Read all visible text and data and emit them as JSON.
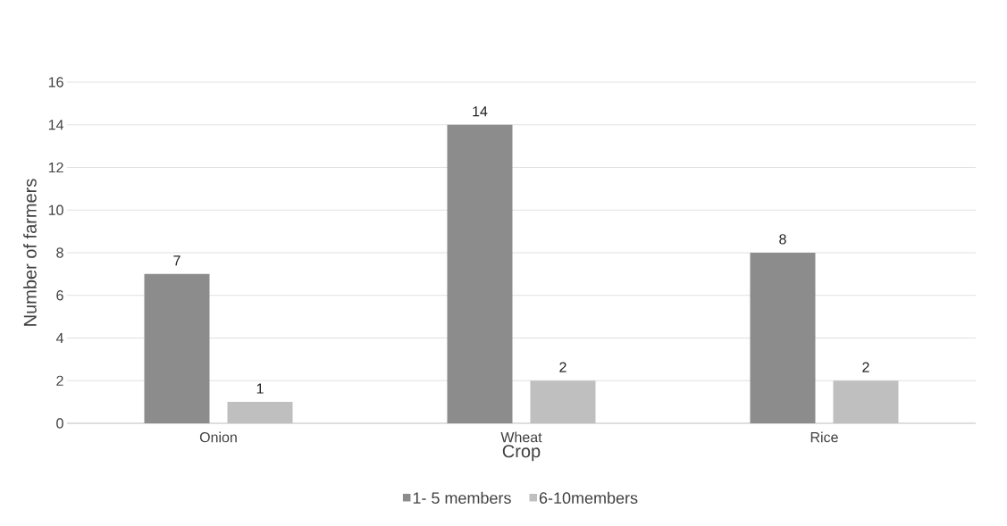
{
  "chart_data": {
    "type": "bar",
    "xlabel": "Crop",
    "ylabel": "Number of farmers",
    "categories": [
      "Onion",
      "Wheat",
      "Rice"
    ],
    "series": [
      {
        "name": "1- 5 members",
        "color": "#8c8c8c",
        "values": [
          7,
          14,
          8
        ]
      },
      {
        "name": "6-10members",
        "color": "#bfbfbf",
        "values": [
          1,
          2,
          2
        ]
      }
    ],
    "ylim": [
      0,
      16
    ],
    "yticks": [
      0,
      2,
      4,
      6,
      8,
      10,
      12,
      14,
      16
    ],
    "grid": "y",
    "legend": "bottom",
    "data_labels": true
  }
}
